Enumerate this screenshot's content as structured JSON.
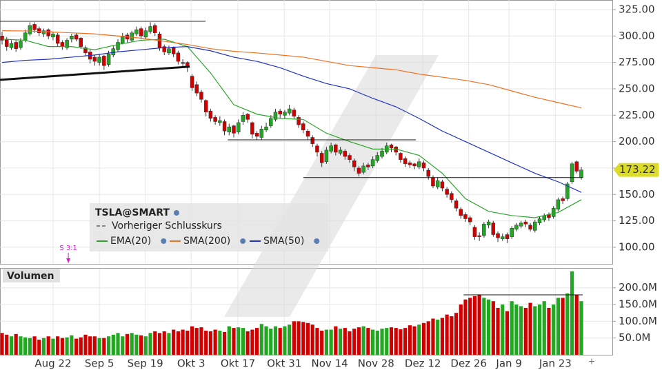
{
  "chart_data": {
    "type": "candlestick",
    "up_color": "#22a722",
    "down_color": "#d00000",
    "xlim": [
      -0.45,
      131.7
    ],
    "xticks": [
      {
        "value": 11,
        "label": "Aug 22"
      },
      {
        "value": 21,
        "label": "Sep 5"
      },
      {
        "value": 30.9,
        "label": "Sep 19"
      },
      {
        "value": 40.8,
        "label": "Okt 3"
      },
      {
        "value": 50.9,
        "label": "Okt 17"
      },
      {
        "value": 60.9,
        "label": "Okt 31"
      },
      {
        "value": 70.7,
        "label": "Nov 14"
      },
      {
        "value": 80.7,
        "label": "Nov 28"
      },
      {
        "value": 90.8,
        "label": "Dez 12"
      },
      {
        "value": 100.7,
        "label": "Dez 26"
      },
      {
        "value": 109.4,
        "label": "Jan 9"
      },
      {
        "value": 119.4,
        "label": "Jan 23"
      }
    ],
    "ylim": [
      84.3,
      334.1
    ],
    "yticks": [
      {
        "value": 100,
        "label": "100.00"
      },
      {
        "value": 125,
        "label": "125.00"
      },
      {
        "value": 150,
        "label": "150.00"
      },
      {
        "value": 175,
        "label": "175.00"
      },
      {
        "value": 200,
        "label": "200.00"
      },
      {
        "value": 225,
        "label": "225.00"
      },
      {
        "value": 250,
        "label": "250.00"
      },
      {
        "value": 275,
        "label": "275.00"
      },
      {
        "value": 300,
        "label": "300.00"
      },
      {
        "value": 325,
        "label": "325.00"
      }
    ],
    "grid": true,
    "legend_title": "TSLA@SMART",
    "prev_close_label": "Vorheriger Schlusskurs",
    "ohlc": [
      [
        300,
        304,
        292,
        296
      ],
      [
        297,
        299,
        286,
        290
      ],
      [
        289,
        296,
        287,
        293
      ],
      [
        294,
        296,
        285,
        288
      ],
      [
        289,
        298,
        287,
        295
      ],
      [
        296,
        306,
        294,
        303
      ],
      [
        302,
        313,
        300,
        310
      ],
      [
        311,
        313,
        303,
        306
      ],
      [
        307,
        309,
        300,
        303
      ],
      [
        302,
        307,
        299,
        305
      ],
      [
        306,
        307,
        297,
        300
      ],
      [
        299,
        304,
        296,
        302
      ],
      [
        301,
        303,
        290,
        293
      ],
      [
        294,
        296,
        287,
        290
      ],
      [
        289,
        298,
        287,
        296
      ],
      [
        297,
        302,
        294,
        300
      ],
      [
        301,
        303,
        295,
        297
      ],
      [
        298,
        299,
        288,
        290
      ],
      [
        289,
        291,
        281,
        284
      ],
      [
        285,
        287,
        274,
        278
      ],
      [
        280,
        282,
        272,
        276
      ],
      [
        275,
        283,
        272,
        280
      ],
      [
        281,
        282,
        268,
        272
      ],
      [
        273,
        286,
        271,
        283
      ],
      [
        282,
        291,
        280,
        288
      ],
      [
        287,
        297,
        285,
        294
      ],
      [
        293,
        303,
        292,
        300
      ],
      [
        301,
        303,
        294,
        297
      ],
      [
        296,
        305,
        294,
        303
      ],
      [
        302,
        309,
        300,
        306
      ],
      [
        307,
        309,
        297,
        300
      ],
      [
        299,
        308,
        297,
        305
      ],
      [
        304,
        313,
        302,
        309
      ],
      [
        310,
        312,
        300,
        303
      ],
      [
        302,
        304,
        286,
        289
      ],
      [
        290,
        292,
        282,
        285
      ],
      [
        284,
        291,
        282,
        288
      ],
      [
        289,
        290,
        280,
        283
      ],
      [
        284,
        286,
        273,
        276
      ],
      [
        275,
        278,
        270,
        274
      ],
      [
        275,
        276,
        266,
        271
      ],
      [
        262,
        264,
        248,
        251
      ],
      [
        254,
        257,
        243,
        246
      ],
      [
        247,
        249,
        237,
        240
      ],
      [
        239,
        240,
        224,
        228
      ],
      [
        229,
        231,
        219,
        222
      ],
      [
        223,
        225,
        216,
        219
      ],
      [
        218,
        224,
        215,
        220
      ],
      [
        219,
        221,
        206,
        210
      ],
      [
        209,
        217,
        206,
        214
      ],
      [
        215,
        216,
        204,
        208
      ],
      [
        209,
        221,
        207,
        218
      ],
      [
        219,
        228,
        216,
        225
      ],
      [
        226,
        227,
        218,
        221
      ],
      [
        218,
        219,
        203,
        207
      ],
      [
        208,
        210,
        202,
        205
      ],
      [
        204,
        215,
        202,
        212
      ],
      [
        211,
        218,
        209,
        214
      ],
      [
        215,
        225,
        213,
        222
      ],
      [
        221,
        231,
        219,
        228
      ],
      [
        229,
        231,
        222,
        226
      ],
      [
        225,
        230,
        222,
        228
      ],
      [
        227,
        235,
        225,
        231
      ],
      [
        230,
        232,
        221,
        224
      ],
      [
        223,
        225,
        213,
        216
      ],
      [
        217,
        219,
        208,
        211
      ],
      [
        210,
        212,
        202,
        205
      ],
      [
        204,
        206,
        195,
        198
      ],
      [
        196,
        198,
        186,
        190
      ],
      [
        189,
        191,
        176,
        180
      ],
      [
        181,
        195,
        179,
        192
      ],
      [
        191,
        199,
        189,
        196
      ],
      [
        197,
        198,
        187,
        190
      ],
      [
        189,
        195,
        187,
        192
      ],
      [
        191,
        193,
        183,
        186
      ],
      [
        187,
        189,
        180,
        183
      ],
      [
        182,
        184,
        172,
        176
      ],
      [
        175,
        177,
        167,
        170
      ],
      [
        171,
        180,
        169,
        177
      ],
      [
        178,
        180,
        173,
        176
      ],
      [
        177,
        186,
        175,
        183
      ],
      [
        182,
        190,
        180,
        187
      ],
      [
        186,
        194,
        184,
        191
      ],
      [
        190,
        199,
        188,
        196
      ],
      [
        197,
        198,
        190,
        194
      ],
      [
        195,
        196,
        187,
        190
      ],
      [
        189,
        190,
        180,
        183
      ],
      [
        184,
        186,
        176,
        179
      ],
      [
        180,
        182,
        175,
        178
      ],
      [
        179,
        180,
        174,
        177
      ],
      [
        176,
        184,
        174,
        181
      ],
      [
        180,
        182,
        172,
        175
      ],
      [
        173,
        175,
        164,
        167
      ],
      [
        166,
        168,
        156,
        158
      ],
      [
        157,
        166,
        155,
        163
      ],
      [
        162,
        164,
        153,
        156
      ],
      [
        155,
        157,
        147,
        150
      ],
      [
        151,
        153,
        142,
        145
      ],
      [
        144,
        146,
        134,
        137
      ],
      [
        136,
        138,
        127,
        130
      ],
      [
        131,
        133,
        124,
        127
      ],
      [
        128,
        130,
        121,
        124
      ],
      [
        119,
        121,
        107,
        110
      ],
      [
        111,
        114,
        106,
        110
      ],
      [
        111,
        124,
        109,
        122
      ],
      [
        121,
        126,
        118,
        124
      ],
      [
        123,
        125,
        110,
        112
      ],
      [
        113,
        115,
        105,
        109
      ],
      [
        108,
        113,
        106,
        110
      ],
      [
        112,
        114,
        104,
        108
      ],
      [
        110,
        120,
        108,
        118
      ],
      [
        117,
        123,
        115,
        121
      ],
      [
        120,
        125,
        118,
        123
      ],
      [
        124,
        126,
        119,
        122
      ],
      [
        121,
        123,
        115,
        117
      ],
      [
        116,
        126,
        114,
        124
      ],
      [
        123,
        129,
        121,
        127
      ],
      [
        126,
        132,
        124,
        130
      ],
      [
        131,
        133,
        125,
        128
      ],
      [
        129,
        139,
        127,
        137
      ],
      [
        136,
        147,
        134,
        145
      ],
      [
        146,
        148,
        141,
        144
      ],
      [
        146,
        162,
        144,
        160
      ],
      [
        162,
        181,
        160,
        179
      ],
      [
        181,
        182,
        170,
        172
      ],
      [
        166,
        176,
        164,
        173.22
      ]
    ],
    "overlays": [
      {
        "name": "EMA(20)",
        "color": "#2aa52a",
        "x": [
          0,
          5,
          10,
          15,
          20,
          25,
          30,
          35,
          40,
          45,
          50,
          55,
          60,
          65,
          70,
          75,
          80,
          85,
          90,
          95,
          100,
          105,
          110,
          115,
          120,
          125
        ],
        "values": [
          297,
          296,
          290,
          290,
          287,
          292,
          296,
          297,
          290,
          265,
          235,
          226,
          222,
          221,
          208,
          200,
          193,
          193,
          187,
          170,
          146,
          134,
          130,
          128,
          133,
          145
        ]
      },
      {
        "name": "SMA(200)",
        "color": "#f07020",
        "x": [
          0,
          5,
          10,
          15,
          20,
          25,
          30,
          35,
          40,
          45,
          50,
          55,
          60,
          65,
          70,
          75,
          80,
          85,
          90,
          95,
          100,
          105,
          110,
          115,
          120,
          125
        ],
        "values": [
          305,
          304.8,
          304,
          303,
          302,
          300,
          298,
          295,
          292,
          288,
          285.5,
          284,
          282,
          280,
          276,
          272,
          270,
          268,
          264,
          261,
          258,
          254,
          248,
          242,
          237,
          232
        ]
      },
      {
        "name": "SMA(50)",
        "color": "#2030c0",
        "x": [
          0,
          5,
          10,
          15,
          20,
          25,
          30,
          35,
          40,
          45,
          50,
          55,
          60,
          65,
          70,
          75,
          80,
          85,
          90,
          95,
          100,
          105,
          110,
          115,
          120,
          125
        ],
        "values": [
          275,
          277,
          278,
          280,
          282,
          285,
          287,
          289,
          290,
          286,
          280,
          276,
          270,
          262,
          255,
          250,
          241,
          233,
          222,
          210,
          200,
          190,
          180,
          170,
          162,
          152
        ]
      }
    ],
    "lines": [
      {
        "x": [
          -0.45,
          43.9
        ],
        "y": [
          314,
          314
        ],
        "width": 1
      },
      {
        "x": [
          -0.45,
          40.5
        ],
        "y": [
          258.5,
          271
        ],
        "width": 3
      },
      {
        "x": [
          48.7,
          89.3
        ],
        "y": [
          201.7,
          201.7
        ],
        "width": 1
      },
      {
        "x": [
          65,
          125.3
        ],
        "y": [
          166,
          166
        ],
        "width": 1
      }
    ],
    "split": {
      "label": "S 3:1",
      "x": 14.3
    },
    "volume": {
      "title": "Volumen",
      "ylim": [
        0,
        257
      ],
      "yticks": [
        {
          "value": 50,
          "label": "50.0M"
        },
        {
          "value": 100,
          "label": "100.0M"
        },
        {
          "value": 150,
          "label": "150.0M"
        },
        {
          "value": 200,
          "label": "200.0M"
        }
      ],
      "values": [
        65,
        60,
        55,
        62,
        55,
        52,
        50,
        55,
        45,
        50,
        55,
        48,
        55,
        50,
        52,
        58,
        48,
        52,
        60,
        55,
        55,
        50,
        50,
        55,
        60,
        65,
        55,
        62,
        65,
        60,
        58,
        55,
        65,
        70,
        65,
        70,
        65,
        75,
        70,
        75,
        72,
        85,
        80,
        82,
        72,
        70,
        75,
        72,
        68,
        85,
        80,
        82,
        80,
        70,
        75,
        80,
        92,
        85,
        78,
        85,
        80,
        85,
        90,
        100,
        100,
        98,
        95,
        90,
        80,
        72,
        75,
        75,
        85,
        78,
        80,
        70,
        78,
        82,
        85,
        80,
        75,
        72,
        78,
        80,
        82,
        80,
        76,
        80,
        88,
        85,
        90,
        95,
        100,
        108,
        105,
        110,
        120,
        115,
        125,
        150,
        165,
        170,
        175,
        180,
        170,
        165,
        160,
        140,
        150,
        130,
        160,
        150,
        145,
        140,
        155,
        145,
        150,
        160,
        140,
        150,
        170,
        170,
        183,
        249,
        179,
        160
      ],
      "line": {
        "x": [
          99.6,
          125.3
        ],
        "y": [
          179,
          179
        ]
      }
    }
  }
}
